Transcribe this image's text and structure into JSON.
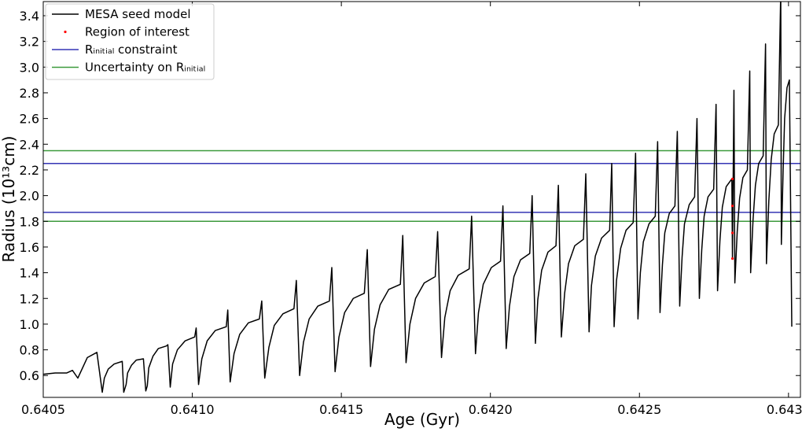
{
  "chart_data": {
    "type": "line",
    "x_label": "Age (Gyr)",
    "y_label": "Radius (10¹³cm)",
    "xlim": [
      0.6405,
      0.64304
    ],
    "ylim": [
      0.43,
      3.51
    ],
    "xticks": [
      0.6405,
      {
        "value": 0.641,
        "label": "0.6410"
      },
      0.6415,
      {
        "value": 0.642,
        "label": "0.6420"
      },
      0.6425,
      {
        "value": 0.643,
        "label": "0.6430"
      }
    ],
    "yticks": [
      0.6,
      0.8,
      {
        "value": 1,
        "label": "1.0"
      },
      1.2,
      1.4,
      1.6,
      1.8,
      {
        "value": 2,
        "label": "2.0"
      },
      2.2,
      2.4,
      2.6,
      2.8,
      {
        "value": 3,
        "label": "3.0"
      },
      3.2,
      3.4
    ],
    "legend": "upper left",
    "series": [
      {
        "name": "MESA seed model",
        "color": "#000000",
        "kind": "line",
        "x": [
          0.6405,
          0.64054,
          0.640579,
          0.640598,
          0.640616,
          0.64063,
          0.640648,
          0.64068,
          0.640698,
          0.640705,
          0.640718,
          0.640738,
          0.640765,
          0.64077,
          0.640778,
          0.640783,
          0.640796,
          0.640812,
          0.640836,
          0.640844,
          0.640849,
          0.640854,
          0.640868,
          0.640886,
          0.640913,
          0.640918,
          0.640926,
          0.640934,
          0.64095,
          0.640976,
          0.641008,
          0.641013,
          0.641021,
          0.641032,
          0.64105,
          0.641077,
          0.641114,
          0.641119,
          0.641127,
          0.64114,
          0.641159,
          0.641188,
          0.641225,
          0.641233,
          0.641243,
          0.641257,
          0.641275,
          0.641304,
          0.641341,
          0.641349,
          0.64136,
          0.641373,
          0.641392,
          0.641421,
          0.64146,
          0.641468,
          0.641479,
          0.641492,
          0.641511,
          0.64154,
          0.641577,
          0.641587,
          0.641598,
          0.641611,
          0.64163,
          0.641659,
          0.641698,
          0.641706,
          0.641717,
          0.64173,
          0.641749,
          0.641778,
          0.641815,
          0.641823,
          0.641836,
          0.641847,
          0.641865,
          0.641892,
          0.641929,
          0.641937,
          0.64195,
          0.64196,
          0.641976,
          0.642003,
          0.642034,
          0.642042,
          0.642053,
          0.642064,
          0.642079,
          0.642101,
          0.642132,
          0.64214,
          0.642151,
          0.642159,
          0.642172,
          0.642193,
          0.64222,
          0.642228,
          0.642238,
          0.642249,
          0.642262,
          0.642283,
          0.642312,
          0.64232,
          0.642331,
          0.642339,
          0.642352,
          0.642373,
          0.6424,
          0.642407,
          0.642415,
          0.642423,
          0.642437,
          0.642455,
          0.642479,
          0.642487,
          0.642495,
          0.642503,
          0.642513,
          0.642532,
          0.642553,
          0.642561,
          0.642569,
          0.642577,
          0.642585,
          0.6426,
          0.642619,
          0.642627,
          0.642635,
          0.642643,
          0.642651,
          0.642667,
          0.642685,
          0.642693,
          0.642701,
          0.642709,
          0.642717,
          0.64273,
          0.642749,
          0.642757,
          0.642762,
          0.64277,
          0.642778,
          0.642791,
          0.64281,
          0.642812,
          0.642817,
          0.64282,
          0.642828,
          0.642836,
          0.642847,
          0.642862,
          0.64287,
          0.642873,
          0.642881,
          0.642889,
          0.6429,
          0.642915,
          0.642923,
          0.642926,
          0.642934,
          0.642942,
          0.642952,
          0.642966,
          0.642974,
          0.642976,
          0.642982,
          0.642987,
          0.642995,
          0.643003,
          0.643011
        ],
        "values": [
          0.61,
          0.62,
          0.62,
          0.64,
          0.58,
          0.65,
          0.74,
          0.78,
          0.47,
          0.58,
          0.65,
          0.69,
          0.71,
          0.47,
          0.53,
          0.62,
          0.68,
          0.72,
          0.73,
          0.48,
          0.52,
          0.66,
          0.75,
          0.81,
          0.83,
          0.84,
          0.51,
          0.69,
          0.8,
          0.87,
          0.9,
          0.97,
          0.53,
          0.73,
          0.87,
          0.95,
          0.98,
          1.11,
          0.55,
          0.77,
          0.92,
          1.01,
          1.04,
          1.18,
          0.58,
          0.82,
          0.99,
          1.08,
          1.12,
          1.34,
          0.6,
          0.86,
          1.04,
          1.14,
          1.18,
          1.44,
          0.63,
          0.9,
          1.09,
          1.2,
          1.24,
          1.58,
          0.67,
          0.96,
          1.15,
          1.27,
          1.31,
          1.69,
          0.7,
          1.0,
          1.2,
          1.32,
          1.37,
          1.72,
          0.74,
          1.05,
          1.26,
          1.38,
          1.43,
          1.84,
          0.77,
          1.09,
          1.31,
          1.44,
          1.49,
          1.92,
          0.81,
          1.14,
          1.37,
          1.5,
          1.55,
          2.0,
          0.85,
          1.19,
          1.42,
          1.56,
          1.61,
          2.08,
          0.9,
          1.24,
          1.47,
          1.61,
          1.66,
          2.17,
          0.94,
          1.3,
          1.53,
          1.67,
          1.73,
          2.25,
          0.98,
          1.34,
          1.59,
          1.73,
          1.79,
          2.33,
          1.04,
          1.4,
          1.64,
          1.78,
          1.84,
          2.42,
          1.09,
          1.46,
          1.71,
          1.86,
          1.92,
          2.5,
          1.14,
          1.52,
          1.78,
          1.93,
          1.99,
          2.6,
          1.2,
          1.58,
          1.84,
          1.99,
          2.05,
          2.71,
          1.26,
          1.65,
          1.91,
          2.07,
          2.13,
          1.51,
          2.82,
          1.32,
          1.72,
          1.98,
          2.14,
          2.2,
          2.97,
          1.4,
          1.81,
          2.08,
          2.25,
          2.31,
          3.18,
          1.47,
          1.96,
          2.28,
          2.48,
          2.55,
          3.6,
          1.62,
          2.2,
          2.6,
          2.84,
          2.9,
          0.98
        ]
      },
      {
        "name": "Region of interest",
        "color": "#ff0000",
        "kind": "scatter",
        "x": [
          0.642812,
          0.642812,
          0.642812,
          0.642812
        ],
        "values": [
          2.13,
          1.92,
          1.71,
          1.51
        ]
      },
      {
        "name": "Rᵢₙᵢₜᵢₐₗ constraint",
        "color": "#3535b5",
        "kind": "hline",
        "values": [
          2.25,
          1.87
        ]
      },
      {
        "name": "Uncertainty on Rᵢₙᵢₜᵢₐₗ",
        "color": "#3c9a3c",
        "kind": "hline",
        "values": [
          2.35,
          1.8
        ]
      }
    ]
  }
}
